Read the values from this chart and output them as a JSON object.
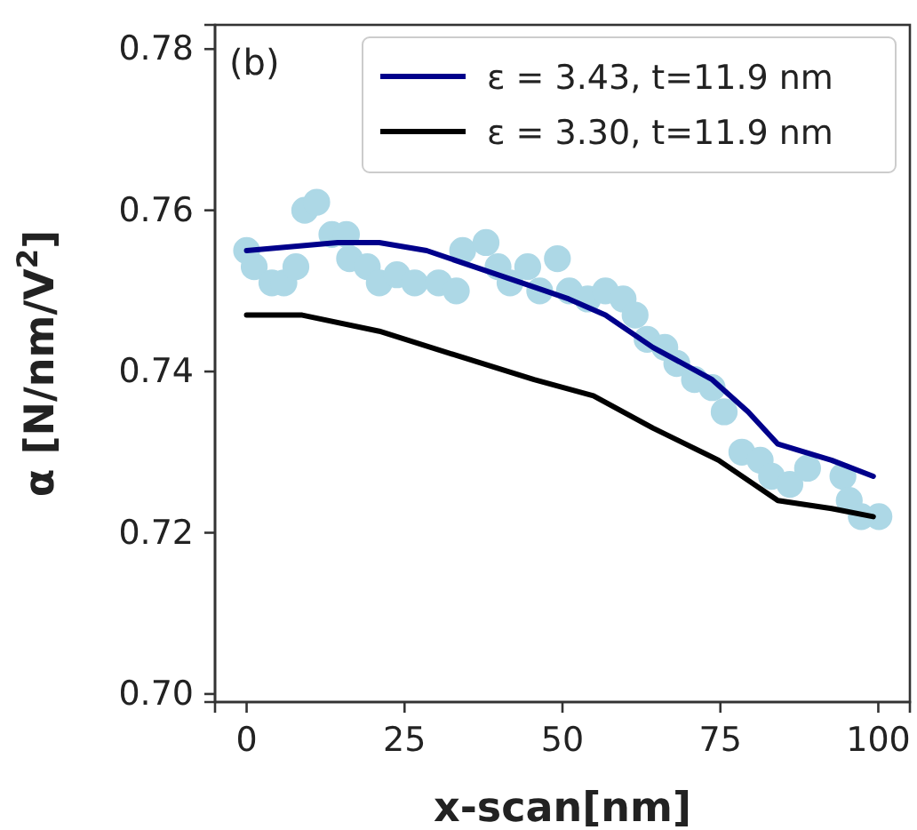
{
  "chart_data": {
    "type": "line",
    "xlabel": "x-scan[nm]",
    "ylabel": "α [N/nm/V$^{2}$]",
    "annotations": [
      "(b)"
    ],
    "xlim": [
      -5,
      105
    ],
    "ylim": [
      0.699,
      0.783
    ],
    "xticks": [
      0,
      25,
      50,
      75,
      100
    ],
    "yticks": [
      {
        "value": 0.7,
        "label": "0.70"
      },
      {
        "value": 0.72,
        "label": "0.72"
      },
      {
        "value": 0.74,
        "label": "0.74"
      },
      {
        "value": 0.76,
        "label": "0.76"
      },
      {
        "value": 0.78,
        "label": "0.78"
      }
    ],
    "grid": false,
    "legend": "top right",
    "line_style": "solid",
    "series": [
      {
        "type": "scatter",
        "color": "#add8e6",
        "marker": "circle",
        "x": [
          0,
          1.2,
          4.0,
          5.9,
          7.8,
          9.2,
          11.1,
          13.5,
          15.8,
          16.3,
          19.1,
          21.0,
          23.8,
          26.6,
          30.4,
          33.2,
          34.2,
          37.9,
          39.8,
          41.7,
          44.5,
          46.4,
          49.2,
          51.1,
          54.0,
          56.8,
          59.6,
          61.5,
          63.4,
          66.2,
          68.1,
          70.9,
          73.7,
          75.6,
          78.4,
          81.3,
          83.1,
          86.0,
          88.8,
          92.6,
          94.4,
          95.4,
          97.3,
          100.1
        ],
        "values": [
          0.755,
          0.753,
          0.751,
          0.751,
          0.753,
          0.76,
          0.761,
          0.757,
          0.757,
          0.754,
          0.753,
          0.751,
          0.752,
          0.751,
          0.751,
          0.75,
          0.755,
          0.756,
          0.753,
          0.751,
          0.753,
          0.75,
          0.754,
          0.75,
          0.749,
          0.75,
          0.749,
          0.747,
          0.744,
          0.743,
          0.741,
          0.739,
          0.738,
          0.735,
          0.73,
          0.729,
          0.727,
          0.726,
          0.728,
          null,
          0.727,
          0.724,
          0.722,
          0.722
        ]
      },
      {
        "name": "ε = 3.43, t=11.9 nm",
        "color": "#00008b",
        "x": [
          0,
          14.4,
          21,
          28.5,
          36,
          43.6,
          51,
          56.8,
          64.3,
          73.7,
          79.4,
          84.1,
          92.6,
          99.2
        ],
        "values": [
          0.755,
          0.756,
          0.756,
          0.755,
          0.753,
          0.751,
          0.749,
          0.747,
          0.743,
          0.739,
          0.735,
          0.731,
          0.729,
          0.727
        ]
      },
      {
        "name": "ε = 3.30, t=11.9 nm",
        "color": "#000000",
        "x": [
          0,
          8.8,
          21,
          33.2,
          45.5,
          54.9,
          64.3,
          74.7,
          84.1,
          92.6,
          99.2
        ],
        "values": [
          0.747,
          0.747,
          0.745,
          0.742,
          0.739,
          0.737,
          0.733,
          0.729,
          0.724,
          0.723,
          0.722
        ]
      }
    ]
  }
}
